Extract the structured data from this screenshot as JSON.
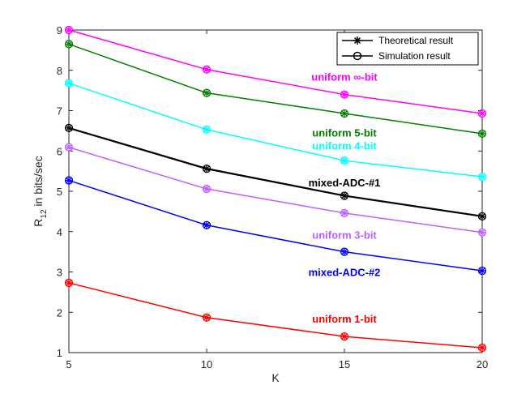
{
  "chart_data": {
    "type": "line",
    "title": "",
    "xlabel": "K",
    "ylabel_main": "R",
    "ylabel_sub": "12",
    "ylabel_rest": " in bits/sec",
    "x": [
      5,
      10,
      15,
      20
    ],
    "xlim": [
      5,
      20
    ],
    "ylim": [
      1,
      9
    ],
    "xticks": [
      5,
      10,
      15,
      20
    ],
    "yticks": [
      1,
      2,
      3,
      4,
      5,
      6,
      7,
      8,
      9
    ],
    "grid": false,
    "legend": {
      "position": "top-right",
      "entries": [
        {
          "label": "Theoretical result",
          "marker": "asterisk"
        },
        {
          "label": "Simulation result",
          "marker": "circle"
        }
      ]
    },
    "series": [
      {
        "name": "uniform ∞-bit",
        "color": "#ff00ff",
        "values": [
          9.0,
          8.02,
          7.4,
          6.93
        ]
      },
      {
        "name": "uniform 5-bit",
        "color": "#008000",
        "values": [
          8.65,
          7.44,
          6.93,
          6.43
        ]
      },
      {
        "name": "uniform 4-bit",
        "color": "#00ffff",
        "values": [
          7.68,
          6.53,
          5.76,
          5.36
        ]
      },
      {
        "name": "mixed-ADC-#1",
        "color": "#000000",
        "values": [
          6.57,
          5.56,
          4.89,
          4.38
        ]
      },
      {
        "name": "uniform 3-bit",
        "color": "#bf5fff",
        "values": [
          6.09,
          5.06,
          4.46,
          3.98
        ]
      },
      {
        "name": "mixed-ADC-#2",
        "color": "#0000ff",
        "values": [
          5.27,
          4.16,
          3.5,
          3.03
        ]
      },
      {
        "name": "uniform 1-bit",
        "color": "#ff0000",
        "values": [
          2.73,
          1.87,
          1.4,
          1.12
        ]
      }
    ],
    "annotations": [
      {
        "text": "uniform ∞-bit",
        "series": "uniform ∞-bit",
        "x": 15,
        "y": 7.74
      },
      {
        "text": "uniform 5-bit",
        "series": "uniform 5-bit",
        "x": 15,
        "y": 6.36
      },
      {
        "text": "uniform 4-bit",
        "series": "uniform 4-bit",
        "x": 15,
        "y": 6.04
      },
      {
        "text": "mixed-ADC-#1",
        "series": "mixed-ADC-#1",
        "x": 15,
        "y": 5.12
      },
      {
        "text": "uniform 3-bit",
        "series": "uniform 3-bit",
        "x": 15,
        "y": 3.82
      },
      {
        "text": "mixed-ADC-#2",
        "series": "mixed-ADC-#2",
        "x": 15,
        "y": 2.9
      },
      {
        "text": "uniform 1-bit",
        "series": "uniform 1-bit",
        "x": 15,
        "y": 1.74
      }
    ]
  }
}
